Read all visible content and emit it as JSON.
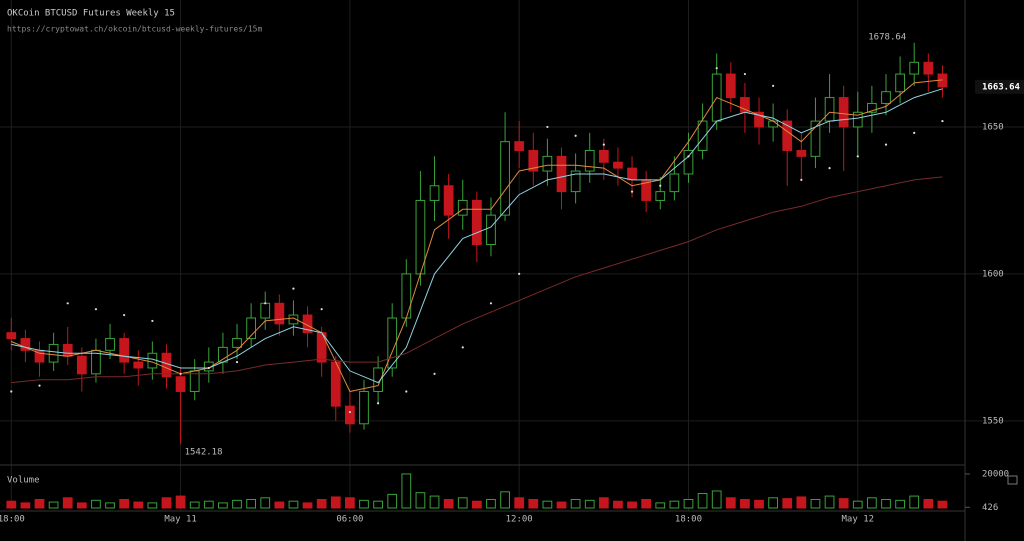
{
  "chart_data": {
    "type": "candlestick",
    "title": "OKCoin BTCUSD Futures Weekly 15",
    "subtitle": "https://cryptowat.ch/okcoin/btcusd-weekly-futures/15m",
    "volume_label": "Volume",
    "up_color": "#3aa23a",
    "down_color": "#c4161c",
    "grid": true,
    "xlim": [
      -0.4,
      33.8
    ],
    "xticks": [
      {
        "value": 0,
        "label": "18:00"
      },
      {
        "value": 6,
        "label": "May 11"
      },
      {
        "value": 12,
        "label": "06:00"
      },
      {
        "value": 18,
        "label": "12:00"
      },
      {
        "value": 24,
        "label": "18:00"
      },
      {
        "value": 30,
        "label": "May 12"
      }
    ],
    "ylim": [
      1536,
      1693.2
    ],
    "yticks": [
      1550,
      1600,
      1650
    ],
    "volume_ylim": [
      0,
      23500
    ],
    "volume_yticks": [
      426,
      20000
    ],
    "x": [
      0,
      0.5,
      1,
      1.5,
      2,
      2.5,
      3,
      3.5,
      4,
      4.5,
      5,
      5.5,
      6,
      6.5,
      7,
      7.5,
      8,
      8.5,
      9,
      9.5,
      10,
      10.5,
      11,
      11.5,
      12,
      12.5,
      13,
      13.5,
      14,
      14.5,
      15,
      15.5,
      16,
      16.5,
      17,
      17.5,
      18,
      18.5,
      19,
      19.5,
      20,
      20.5,
      21,
      21.5,
      22,
      22.5,
      23,
      23.5,
      24,
      24.5,
      25,
      25.5,
      26,
      26.5,
      27,
      27.5,
      28,
      28.5,
      29,
      29.5,
      30,
      30.5,
      31,
      31.5,
      32,
      32.5,
      33
    ],
    "open": [
      1580,
      1578,
      1574,
      1570,
      1576,
      1572,
      1566,
      1574,
      1578,
      1570,
      1568,
      1573,
      1565,
      1560,
      1567,
      1570,
      1575,
      1578,
      1585,
      1590,
      1583,
      1586,
      1580,
      1570,
      1555,
      1549,
      1560,
      1568,
      1585,
      1600,
      1625,
      1630,
      1620,
      1625,
      1610,
      1620,
      1645,
      1642,
      1635,
      1640,
      1628,
      1635,
      1642,
      1638,
      1636,
      1632,
      1625,
      1628,
      1634,
      1642,
      1652,
      1668,
      1660,
      1655,
      1650,
      1652,
      1642,
      1640,
      1652,
      1660,
      1650,
      1655,
      1658,
      1662,
      1668,
      1672,
      1668
    ],
    "high": [
      1585,
      1581,
      1577,
      1580,
      1582,
      1575,
      1578,
      1583,
      1580,
      1574,
      1577,
      1576,
      1568,
      1571,
      1575,
      1580,
      1583,
      1590,
      1594,
      1593,
      1591,
      1589,
      1582,
      1572,
      1560,
      1564,
      1572,
      1590,
      1605,
      1635,
      1640,
      1634,
      1632,
      1628,
      1626,
      1655,
      1652,
      1648,
      1646,
      1643,
      1641,
      1648,
      1646,
      1643,
      1640,
      1635,
      1633,
      1640,
      1648,
      1658,
      1675,
      1672,
      1665,
      1660,
      1658,
      1656,
      1648,
      1660,
      1668,
      1664,
      1662,
      1664,
      1668,
      1674,
      1678.64,
      1675,
      1671
    ],
    "low": [
      1574,
      1570,
      1565,
      1567,
      1569,
      1560,
      1563,
      1571,
      1566,
      1562,
      1564,
      1561,
      1542.18,
      1557,
      1563,
      1566,
      1571,
      1575,
      1581,
      1579,
      1579,
      1575,
      1565,
      1550,
      1546,
      1547,
      1556,
      1565,
      1582,
      1596,
      1618,
      1612,
      1615,
      1604,
      1606,
      1618,
      1636,
      1630,
      1630,
      1622,
      1624,
      1631,
      1632,
      1630,
      1626,
      1621,
      1622,
      1625,
      1631,
      1639,
      1649,
      1655,
      1648,
      1644,
      1645,
      1630,
      1632,
      1636,
      1648,
      1635,
      1640,
      1648,
      1654,
      1658,
      1664,
      1662,
      1660
    ],
    "close": [
      1578,
      1574,
      1570,
      1576,
      1572,
      1566,
      1574,
      1578,
      1570,
      1568,
      1573,
      1565,
      1560,
      1567,
      1570,
      1575,
      1578,
      1585,
      1590,
      1583,
      1586,
      1580,
      1570,
      1555,
      1549,
      1560,
      1568,
      1585,
      1600,
      1625,
      1630,
      1620,
      1625,
      1610,
      1620,
      1645,
      1642,
      1635,
      1640,
      1628,
      1635,
      1642,
      1638,
      1636,
      1632,
      1625,
      1628,
      1634,
      1642,
      1652,
      1668,
      1660,
      1655,
      1650,
      1652,
      1642,
      1640,
      1652,
      1660,
      1650,
      1655,
      1658,
      1662,
      1668,
      1672,
      1668,
      1663.64
    ],
    "volume": [
      4000,
      3000,
      5000,
      3500,
      6000,
      3000,
      4500,
      3000,
      5000,
      3500,
      3000,
      6000,
      7000,
      3500,
      4000,
      3000,
      4500,
      5000,
      6000,
      3500,
      4000,
      3000,
      5000,
      6500,
      6000,
      4500,
      4000,
      8000,
      20000,
      9000,
      7000,
      5000,
      6000,
      4000,
      5000,
      9500,
      6000,
      5000,
      4000,
      3500,
      5000,
      4500,
      6000,
      4000,
      3500,
      5000,
      3000,
      4000,
      5000,
      8500,
      10000,
      6000,
      5000,
      4500,
      6000,
      5500,
      6500,
      5000,
      7000,
      5500,
      4000,
      6000,
      5000,
      4500,
      7000,
      5000,
      4000
    ],
    "indicator_x": [
      0,
      1,
      2,
      3,
      4,
      5,
      6,
      7,
      8,
      9,
      10,
      11,
      12,
      13,
      14,
      15,
      16,
      17,
      18,
      19,
      20,
      21,
      22,
      23,
      24,
      25,
      26,
      27,
      28,
      29,
      30,
      31,
      32,
      33
    ],
    "lines": [
      {
        "color": "#e08a3c",
        "values": [
          1577,
          1573,
          1572,
          1574,
          1572,
          1570,
          1566,
          1568,
          1574,
          1584,
          1585,
          1580,
          1560,
          1562,
          1585,
          1615,
          1622,
          1622,
          1635,
          1637,
          1637,
          1636,
          1630,
          1632,
          1645,
          1660,
          1656,
          1652,
          1645,
          1655,
          1654,
          1657,
          1665,
          1666
        ]
      },
      {
        "color": "#8fd3e0",
        "values": [
          1576,
          1574,
          1573,
          1573,
          1572,
          1571,
          1568,
          1568,
          1572,
          1578,
          1582,
          1580,
          1567,
          1563,
          1575,
          1600,
          1612,
          1616,
          1627,
          1632,
          1634,
          1634,
          1632,
          1632,
          1640,
          1652,
          1655,
          1653,
          1648,
          1652,
          1653,
          1655,
          1660,
          1663
        ]
      },
      {
        "color": "#7a2a2a",
        "values": [
          1563,
          1564,
          1564,
          1565,
          1565,
          1566,
          1566,
          1566,
          1567,
          1569,
          1570,
          1571,
          1570,
          1570,
          1573,
          1578,
          1583,
          1587,
          1591,
          1595,
          1599,
          1602,
          1605,
          1608,
          1611,
          1615,
          1618,
          1621,
          1623,
          1626,
          1628,
          1630,
          1632,
          1633
        ]
      }
    ],
    "sar": {
      "color": "#dddddd",
      "values": [
        1560,
        1562,
        1590,
        1588,
        1586,
        1584,
        1566,
        1568,
        1570,
        1590,
        1595,
        1588,
        1553,
        1556,
        1560,
        1566,
        1575,
        1590,
        1600,
        1650,
        1647,
        1644,
        1628,
        1630,
        1640,
        1670,
        1668,
        1664,
        1632,
        1636,
        1640,
        1644,
        1648,
        1652
      ]
    }
  }
}
